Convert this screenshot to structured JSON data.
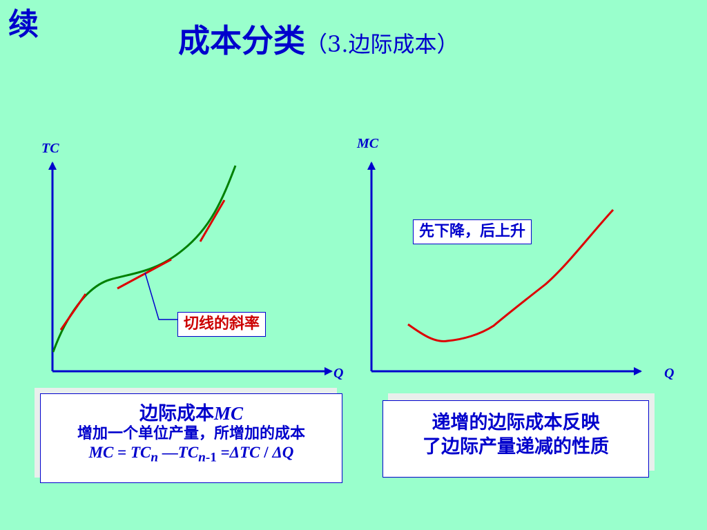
{
  "continued_label": "续",
  "title": {
    "main": "成本分类",
    "sub": "（3.边际成本）"
  },
  "left_chart": {
    "y_axis_label": "TC",
    "x_axis_label": "Q",
    "callout": "切线的斜率",
    "curve_color": "#008000",
    "tangent_color": "#DD0000"
  },
  "right_chart": {
    "y_axis_label": "MC",
    "x_axis_label": "Q",
    "callout": "先下降，后上升",
    "curve_color": "#DD0000"
  },
  "definition_box": {
    "heading": "边际成本",
    "heading_symbol": "MC",
    "description": "增加一个单位产量，所增加的成本",
    "formula": {
      "lhs": "MC",
      "eq": " = ",
      "tc": "TC",
      "sub_n": "n",
      "dash": " —",
      "tc2": "TC",
      "sub_n1": "n",
      "sub_minus1": "-1",
      "eq2": " =",
      "delta_tc": "ΔTC",
      "slash": " / ",
      "delta_q": "ΔQ"
    }
  },
  "summary_box": {
    "line1": "递增的边际成本反映",
    "line2": "了边际产量递减的性质"
  },
  "axis_color": "#0000CC",
  "text_color": "#0000CC"
}
